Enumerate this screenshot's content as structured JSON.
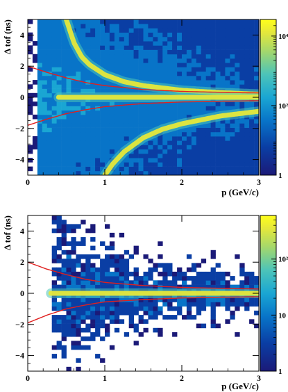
{
  "colors": {
    "palette": [
      "#1b1a78",
      "#0a3ea4",
      "#0874c8",
      "#1aa6d3",
      "#4dc4b8",
      "#a6d86a",
      "#e6e83a",
      "#ffff1a"
    ],
    "curve": "#e0201f"
  },
  "chart_data": [
    {
      "type": "heatmap",
      "title": "",
      "xlabel": "p (GeV/c)",
      "ylabel": "Δ tof (ns)",
      "xlim": [
        0,
        3
      ],
      "ylim": [
        -5,
        5
      ],
      "x_ticks": [
        "0",
        "1",
        "2",
        "3"
      ],
      "y_ticks": [
        "−4",
        "−2",
        "0",
        "2",
        "4"
      ],
      "x_tick_values": [
        0,
        1,
        2,
        3
      ],
      "y_tick_values": [
        -4,
        -2,
        0,
        2,
        4
      ],
      "colorbar": {
        "scale": "log",
        "range": [
          1,
          30000
        ],
        "tick_labels": [
          "1",
          "10²",
          "10⁴"
        ],
        "tick_values": [
          1,
          100,
          10000
        ]
      },
      "bands": [
        {
          "name": "",
          "type": "line",
          "x": [
            0.5,
            0.6,
            0.7,
            0.8,
            1.0,
            1.25,
            1.5,
            2.0,
            2.5,
            3.0
          ],
          "y": [
            5.0,
            3.5,
            2.6,
            2.1,
            1.45,
            1.0,
            0.75,
            0.45,
            0.3,
            0.2
          ]
        },
        {
          "name": "",
          "type": "line",
          "x": [
            1.0,
            1.1,
            1.25,
            1.5,
            1.75,
            2.0,
            2.5,
            3.0
          ],
          "y": [
            -5.0,
            -4.3,
            -3.5,
            -2.6,
            -2.05,
            -1.7,
            -1.2,
            -0.9
          ]
        },
        {
          "name": "",
          "type": "line",
          "x": [
            0.4,
            1.0,
            2.0,
            3.0
          ],
          "y": [
            0,
            0,
            0,
            0
          ]
        }
      ],
      "cut_curves": [
        {
          "name": "",
          "x": [
            0,
            0.25,
            0.5,
            0.75,
            1.0,
            1.5,
            2.0,
            2.5,
            3.0
          ],
          "y": [
            2.0,
            1.6,
            1.25,
            0.95,
            0.75,
            0.5,
            0.38,
            0.32,
            0.28
          ]
        },
        {
          "name": "",
          "x": [
            0,
            0.25,
            0.5,
            0.75,
            1.0,
            1.5,
            2.0,
            2.5,
            3.0
          ],
          "y": [
            -1.8,
            -1.4,
            -1.05,
            -0.8,
            -0.6,
            -0.4,
            -0.3,
            -0.25,
            -0.22
          ]
        }
      ]
    },
    {
      "type": "heatmap",
      "title": "",
      "xlabel": "p (GeV/c)",
      "ylabel": "Δ tof (ns)",
      "xlim": [
        0,
        3
      ],
      "ylim": [
        -5,
        5
      ],
      "x_ticks": [
        "0",
        "1",
        "2",
        "3"
      ],
      "y_ticks": [
        "−4",
        "−2",
        "0",
        "2",
        "4"
      ],
      "x_tick_values": [
        0,
        1,
        2,
        3
      ],
      "y_tick_values": [
        -4,
        -2,
        0,
        2,
        4
      ],
      "colorbar": {
        "scale": "log",
        "range": [
          1,
          600
        ],
        "tick_labels": [
          "1",
          "10",
          "10²"
        ],
        "tick_values": [
          1,
          10,
          100
        ]
      },
      "bands": [
        {
          "name": "",
          "type": "line",
          "x": [
            0.3,
            1.0,
            2.0,
            3.0
          ],
          "y": [
            0,
            0,
            0,
            0
          ]
        }
      ],
      "cut_curves": [
        {
          "name": "",
          "x": [
            0,
            0.25,
            0.5,
            0.75,
            1.0,
            1.5,
            2.0,
            2.5,
            3.0
          ],
          "y": [
            2.0,
            1.55,
            1.2,
            0.9,
            0.7,
            0.5,
            0.38,
            0.32,
            0.28
          ]
        },
        {
          "name": "",
          "x": [
            0,
            0.25,
            0.5,
            0.75,
            1.0,
            1.5,
            2.0,
            2.5,
            3.0
          ],
          "y": [
            -1.9,
            -1.4,
            -1.0,
            -0.75,
            -0.55,
            -0.4,
            -0.3,
            -0.25,
            -0.22
          ]
        }
      ]
    }
  ]
}
